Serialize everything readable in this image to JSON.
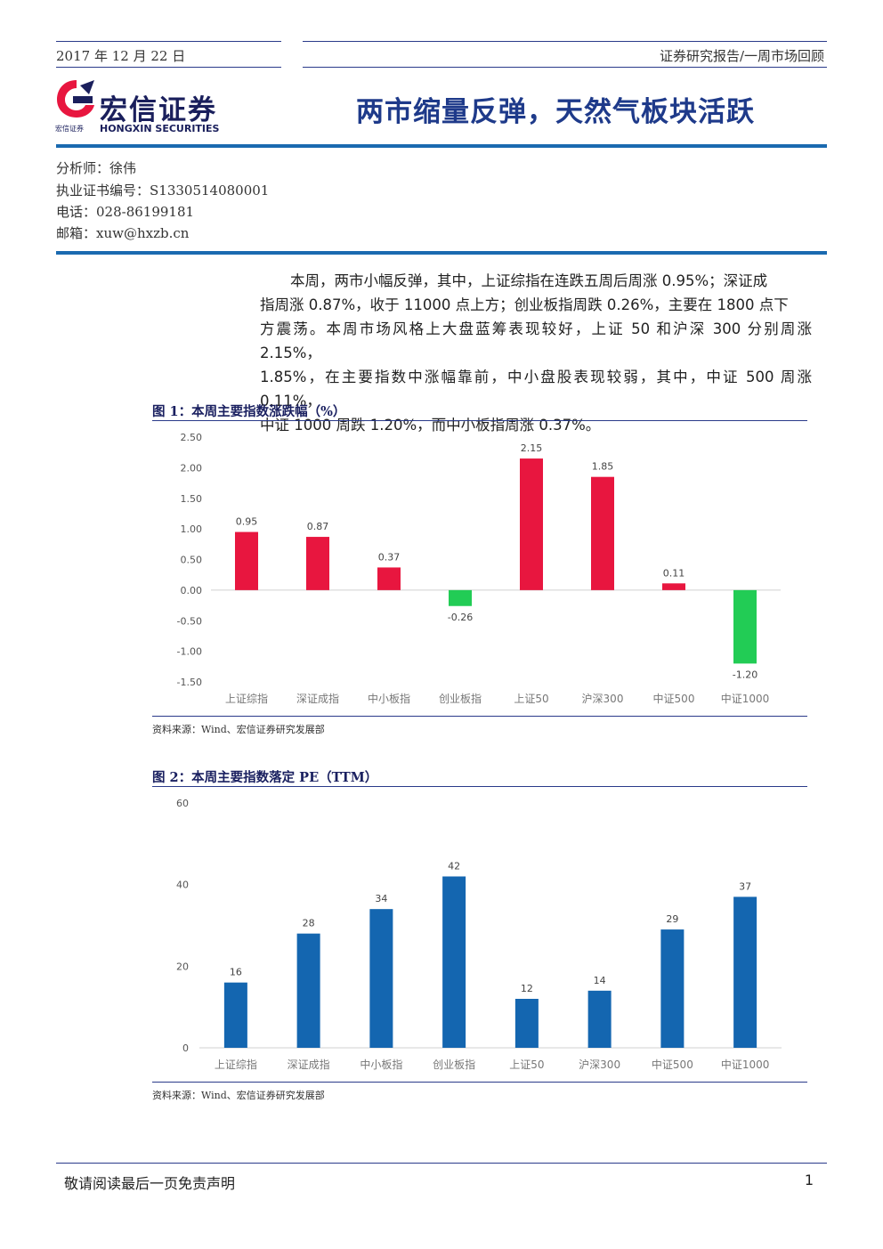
{
  "header": {
    "date": "2017 年 12 月 22 日",
    "report_type": "证券研究报告/一周市场回顾",
    "company_cn": "宏信证券",
    "company_en": "HONGXIN SECURITIES",
    "company_sub": "宏信证券",
    "title": "两市缩量反弹，天然气板块活跃"
  },
  "analyst": {
    "name": "分析师：徐伟",
    "cert": "执业证书编号：S1330514080001",
    "phone": "电话：028-86199181",
    "email": "邮箱：xuw@hxzb.cn"
  },
  "summary": {
    "lines": [
      "本周，两市小幅反弹，其中，上证综指在连跌五周后周涨 0.95%；深证成",
      "指周涨 0.87%，收于 11000 点上方；创业板指周跌 0.26%，主要在 1800 点下",
      "方震荡。本周市场风格上大盘蓝筹表现较好，上证 50 和沪深 300 分别周涨 2.15%，",
      "1.85%，在主要指数中涨幅靠前，中小盘股表现较弱，其中，中证 500 周涨 0.11%，",
      "中证 1000 周跌 1.20%，而中小板指周涨 0.37%。"
    ]
  },
  "figure1": {
    "title": "图 1：本周主要指数涨跌幅（%）",
    "source": "资料来源：Wind、宏信证券研究发展部"
  },
  "figure2": {
    "title": "图 2：本周主要指数落定 PE（TTM）",
    "source": "资料来源：Wind、宏信证券研究发展部"
  },
  "footer": {
    "disclaimer": "敬请阅读最后一页免责声明",
    "page": "1"
  },
  "colors": {
    "positive": "#e8163f",
    "negative": "#22cc55",
    "pe_bar": "#1466b0",
    "accent": "#1a6ab0"
  },
  "chart_data": [
    {
      "type": "bar",
      "categories": [
        "上证综指",
        "深证成指",
        "中小板指",
        "创业板指",
        "上证50",
        "沪深300",
        "中证500",
        "中证1000"
      ],
      "values": [
        0.95,
        0.87,
        0.37,
        -0.26,
        2.15,
        1.85,
        0.11,
        -1.2
      ],
      "data_labels": [
        "0.95",
        "0.87",
        "0.37",
        "-0.26",
        "2.15",
        "1.85",
        "0.11",
        "-1.20"
      ],
      "yticks": [
        "2.50",
        "2.00",
        "1.50",
        "1.00",
        "0.50",
        "0.00",
        "-0.50",
        "-1.00",
        "-1.50"
      ],
      "ylim": [
        -1.5,
        2.5
      ],
      "grid": false,
      "legend": "none"
    },
    {
      "type": "bar",
      "categories": [
        "上证综指",
        "深证成指",
        "中小板指",
        "创业板指",
        "上证50",
        "沪深300",
        "中证500",
        "中证1000"
      ],
      "values": [
        16,
        28,
        34,
        42,
        12,
        14,
        29,
        37
      ],
      "data_labels": [
        "16",
        "28",
        "34",
        "42",
        "12",
        "14",
        "29",
        "37"
      ],
      "yticks": [
        "60",
        "40",
        "20",
        "0"
      ],
      "ylim": [
        0,
        60
      ],
      "grid": false,
      "legend": "none"
    }
  ]
}
